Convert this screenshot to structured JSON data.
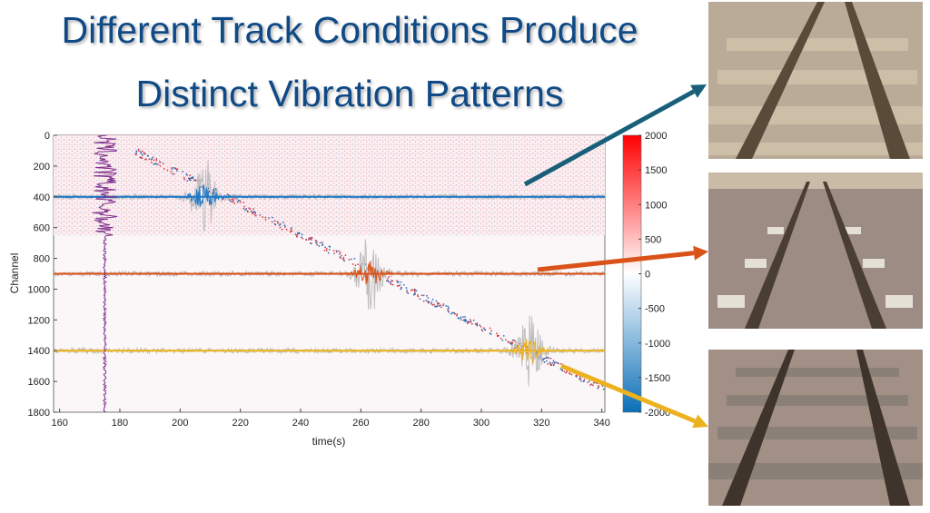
{
  "slide": {
    "title_line1": "Different Track Conditions Produce",
    "title_line2": "Distinct Vibration Patterns"
  },
  "chart_data": {
    "type": "heatmap",
    "xlabel": "time(s)",
    "ylabel": "Channel",
    "xlim": [
      158,
      341
    ],
    "ylim": [
      1800,
      0
    ],
    "xticks": [
      "160",
      "180",
      "200",
      "220",
      "240",
      "260",
      "280",
      "300",
      "320",
      "340"
    ],
    "yticks": [
      "0",
      "200",
      "400",
      "600",
      "800",
      "1000",
      "1200",
      "1400",
      "1600",
      "1800"
    ],
    "colorbar": {
      "range": [
        -2000,
        2000
      ],
      "ticks": [
        "2000",
        "1500",
        "1000",
        "500",
        "0",
        "-500",
        "-1000",
        "-1500",
        "-2000"
      ],
      "colors": [
        "#0b6fb8",
        "#ffffff",
        "#ff0000"
      ]
    },
    "noisy_channel_range": [
      0,
      650
    ],
    "moving_source": {
      "start": {
        "time": 185,
        "channel": 100
      },
      "end": {
        "time": 341,
        "channel": 1650
      }
    },
    "traces": [
      {
        "channel": 400,
        "color": "#1f77c4",
        "peak_time": 208
      },
      {
        "channel": 900,
        "color": "#d95319",
        "peak_time": 263
      },
      {
        "channel": 1400,
        "color": "#edb120",
        "peak_time": 316
      }
    ],
    "vertical_trace": {
      "time": 175,
      "color": "#7e2f8e"
    }
  },
  "arrows": [
    {
      "color": "#1a5f7a",
      "target": "photo-top"
    },
    {
      "color": "#d95319",
      "target": "photo-middle"
    },
    {
      "color": "#edb120",
      "target": "photo-bottom"
    }
  ],
  "photos": [
    {
      "name": "track-wooden-sleepers-worn"
    },
    {
      "name": "track-concrete-blocks"
    },
    {
      "name": "track-wooden-sleepers"
    }
  ]
}
